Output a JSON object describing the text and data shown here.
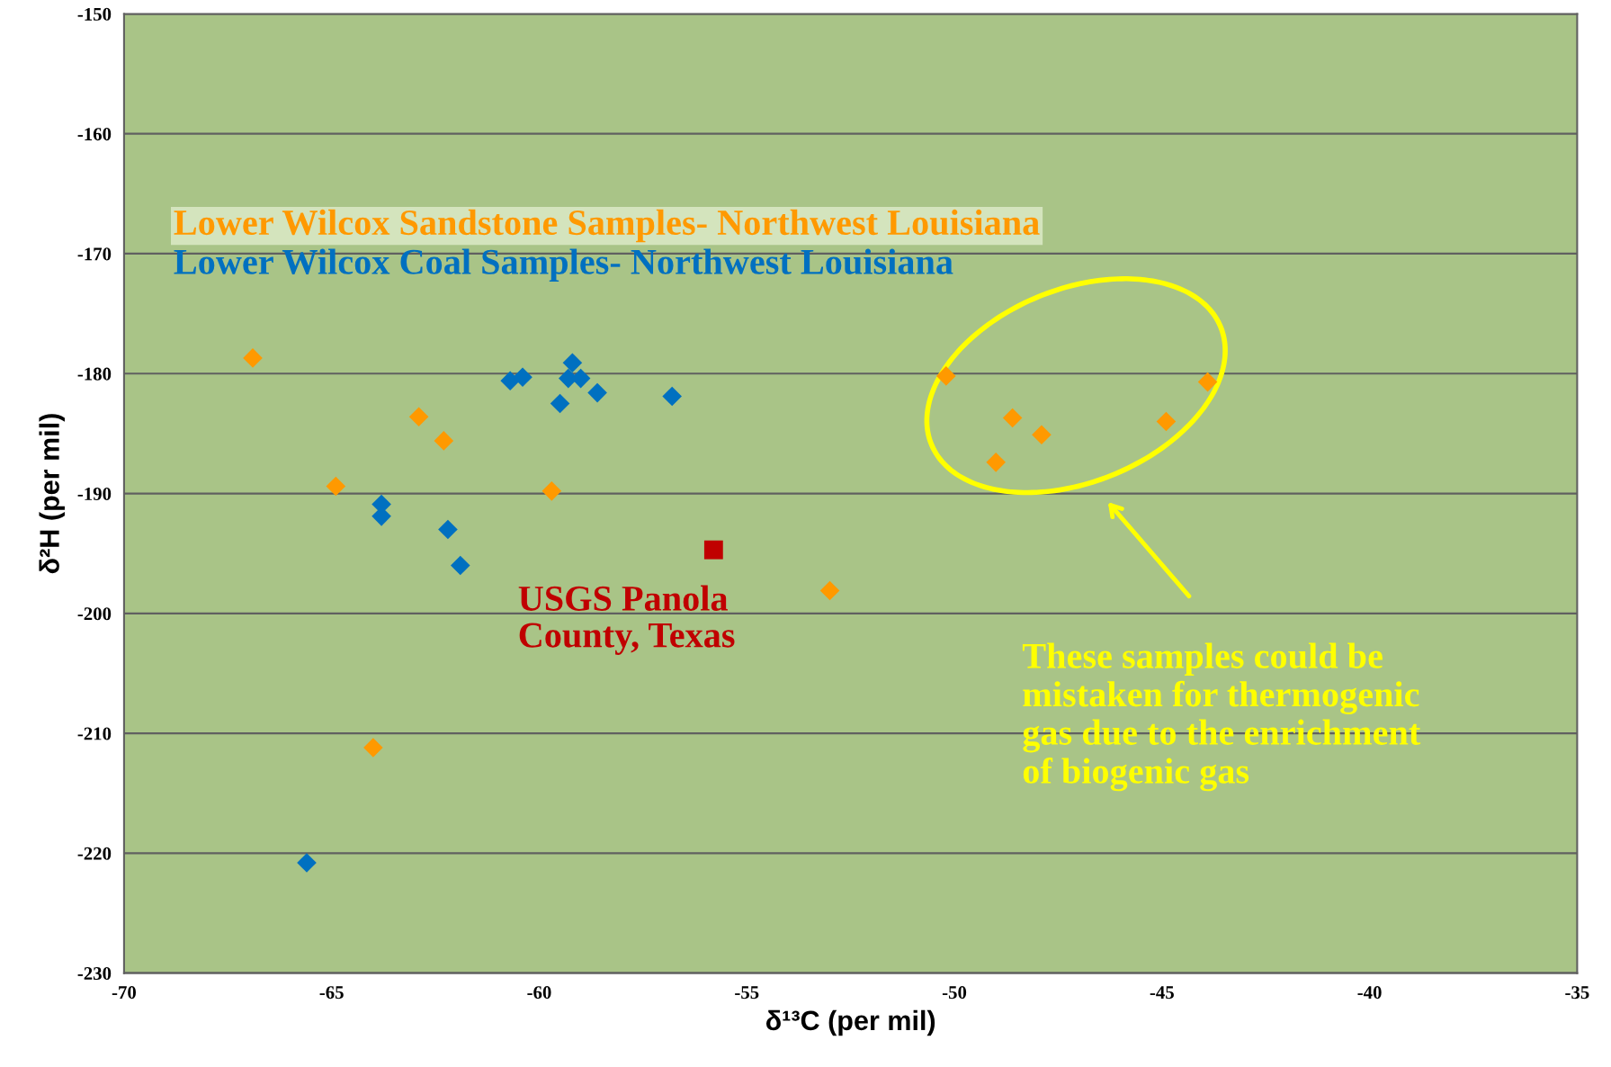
{
  "chart_data": {
    "type": "scatter",
    "xlabel": "δ¹³C (per mil)",
    "ylabel": "δ²H (per mil)",
    "xlim": [
      -70,
      -35
    ],
    "xticks": [
      -70,
      -65,
      -60,
      -55,
      -50,
      -45,
      -40,
      -35
    ],
    "ylim": [
      -230,
      -150
    ],
    "yticks": [
      -230,
      -220,
      -210,
      -200,
      -190,
      -180,
      -170,
      -160,
      -150
    ],
    "grid": "y",
    "marker": "diamond",
    "legend": false,
    "series": [
      {
        "name": "Lower Wilcox Sandstone Samples- Northwest Louisiana",
        "color": "#ff9900",
        "x": [
          -66.9,
          -62.9,
          -62.3,
          -64.9,
          -59.7,
          -64.0,
          -53.0,
          -50.2,
          -48.6,
          -47.9,
          -49.0,
          -44.9,
          -43.9
        ],
        "values": [
          -178.7,
          -183.6,
          -185.6,
          -189.4,
          -189.8,
          -211.2,
          -198.1,
          -180.2,
          -183.7,
          -185.1,
          -187.4,
          -184.0,
          -180.7
        ]
      },
      {
        "name": "Lower Wilcox Coal Samples- Northwest Louisiana",
        "color": "#0070c0",
        "x": [
          -60.7,
          -60.4,
          -59.2,
          -59.3,
          -59.0,
          -58.6,
          -59.5,
          -56.8,
          -63.8,
          -63.8,
          -62.2,
          -61.9,
          -65.6
        ],
        "values": [
          -180.6,
          -180.3,
          -179.1,
          -180.4,
          -180.4,
          -181.6,
          -182.5,
          -181.9,
          -190.9,
          -191.9,
          -193.0,
          -196.0,
          -220.8
        ]
      },
      {
        "name": "USGS Panola\nCounty, Texas",
        "color": "#c00000",
        "marker": "square",
        "x": [
          -55.8
        ],
        "values": [
          -194.7
        ]
      }
    ],
    "annotations": [
      "These samples could be\nmistaken for thermogenic\ngas due to the enrichment\nof biogenic gas"
    ]
  }
}
